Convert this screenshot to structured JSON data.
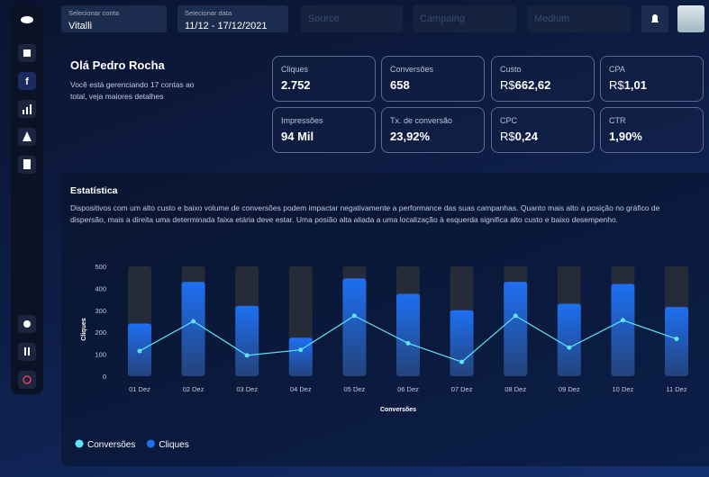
{
  "top_bar": {
    "account": {
      "label": "Selecionar conta",
      "value": "Vitalli"
    },
    "date": {
      "label": "Selecionar data",
      "value": "11/12 - 17/12/2021"
    },
    "filters": [
      "Source",
      "Campaing",
      "Medium"
    ]
  },
  "greeting": {
    "title": "Olá Pedro Rocha",
    "text": "Você está gerenciando 17 contas ao total, veja maiores detalhes"
  },
  "kpis": [
    {
      "label": "Cliques",
      "value": "2.752"
    },
    {
      "label": "Conversões",
      "value": "658"
    },
    {
      "label": "Custo",
      "prefix": "R$",
      "value": "662,62"
    },
    {
      "label": "CPA",
      "prefix": "R$",
      "value": "1,01"
    },
    {
      "label": "Impressões",
      "value": "94 Mil"
    },
    {
      "label": "Tx. de conversão",
      "value": "23,92%"
    },
    {
      "label": "CPC",
      "prefix": "R$",
      "value": "0,24"
    },
    {
      "label": "CTR",
      "value": "1,90%"
    }
  ],
  "statistics": {
    "title": "Estatística",
    "description": "Dispositivos com um alto custo e baixo volume de conversões podem impactar negativamente a performance das suas campanhas. Quanto mais alto a posição no gráfico de dispersão, mais a direita uma determinada faixa etária deve estar. Uma posião alta aliada a uma localização à esquerda significa alto custo e baixo desempenho."
  },
  "chart_data": {
    "type": "bar",
    "x_label": "Conversões",
    "y_label": "Cliques",
    "categories": [
      "01 Dez",
      "02 Dez",
      "03 Dez",
      "04 Dez",
      "05 Dez",
      "06 Dez",
      "07 Dez",
      "08 Dez",
      "09 Dez",
      "10 Dez",
      "11 Dez"
    ],
    "series": [
      {
        "name": "Conversões",
        "type": "line",
        "color": "#5fe3f7",
        "values": [
          115,
          250,
          95,
          120,
          275,
          150,
          65,
          275,
          130,
          255,
          170
        ]
      },
      {
        "name": "Cliques",
        "type": "bar",
        "color": "#1e6ff2",
        "values": [
          240,
          430,
          320,
          175,
          445,
          375,
          300,
          430,
          330,
          420,
          315
        ]
      }
    ],
    "ylim": [
      0,
      500
    ],
    "yticks": [
      0,
      100,
      200,
      300,
      400,
      500
    ],
    "legend": "bottom-left"
  }
}
